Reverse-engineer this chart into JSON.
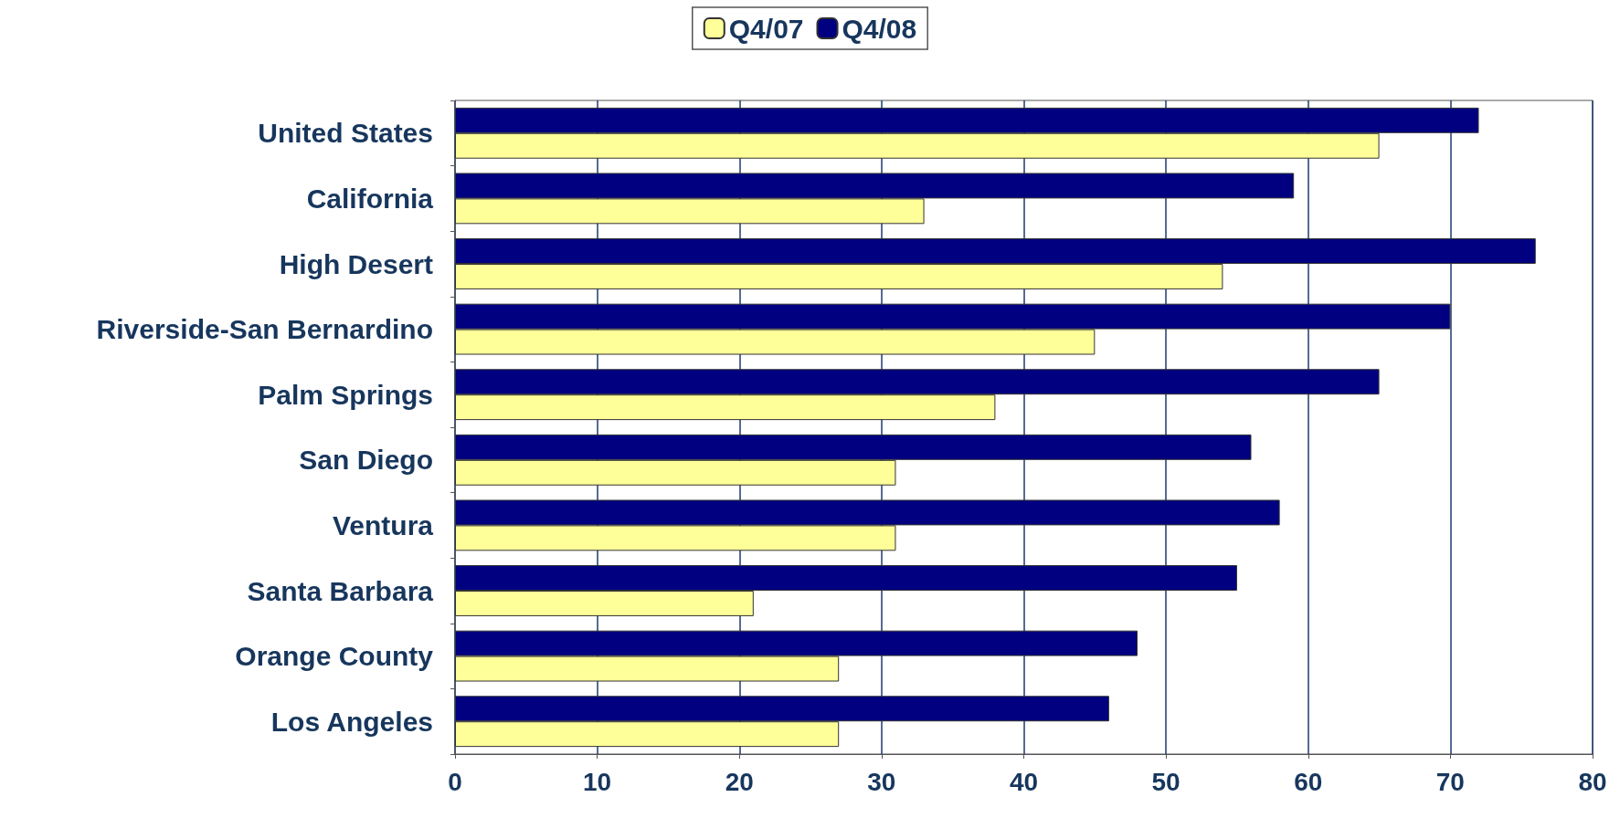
{
  "chart_data": {
    "type": "bar",
    "orientation": "horizontal",
    "categories": [
      "United States",
      "California",
      "High Desert",
      "Riverside-San Bernardino",
      "Palm Springs",
      "San Diego",
      "Ventura",
      "Santa Barbara",
      "Orange County",
      "Los Angeles"
    ],
    "series": [
      {
        "name": "Q4/07",
        "color": "#ffff99",
        "values": [
          65,
          33,
          54,
          45,
          38,
          31,
          31,
          21,
          27,
          27
        ]
      },
      {
        "name": "Q4/08",
        "color": "#000080",
        "values": [
          72,
          59,
          76,
          70,
          65,
          56,
          58,
          55,
          48,
          46
        ]
      }
    ],
    "xlim": [
      0,
      80
    ],
    "xticks": [
      0,
      10,
      20,
      30,
      40,
      50,
      60,
      70,
      80
    ],
    "grid": "x",
    "legend": "top"
  }
}
